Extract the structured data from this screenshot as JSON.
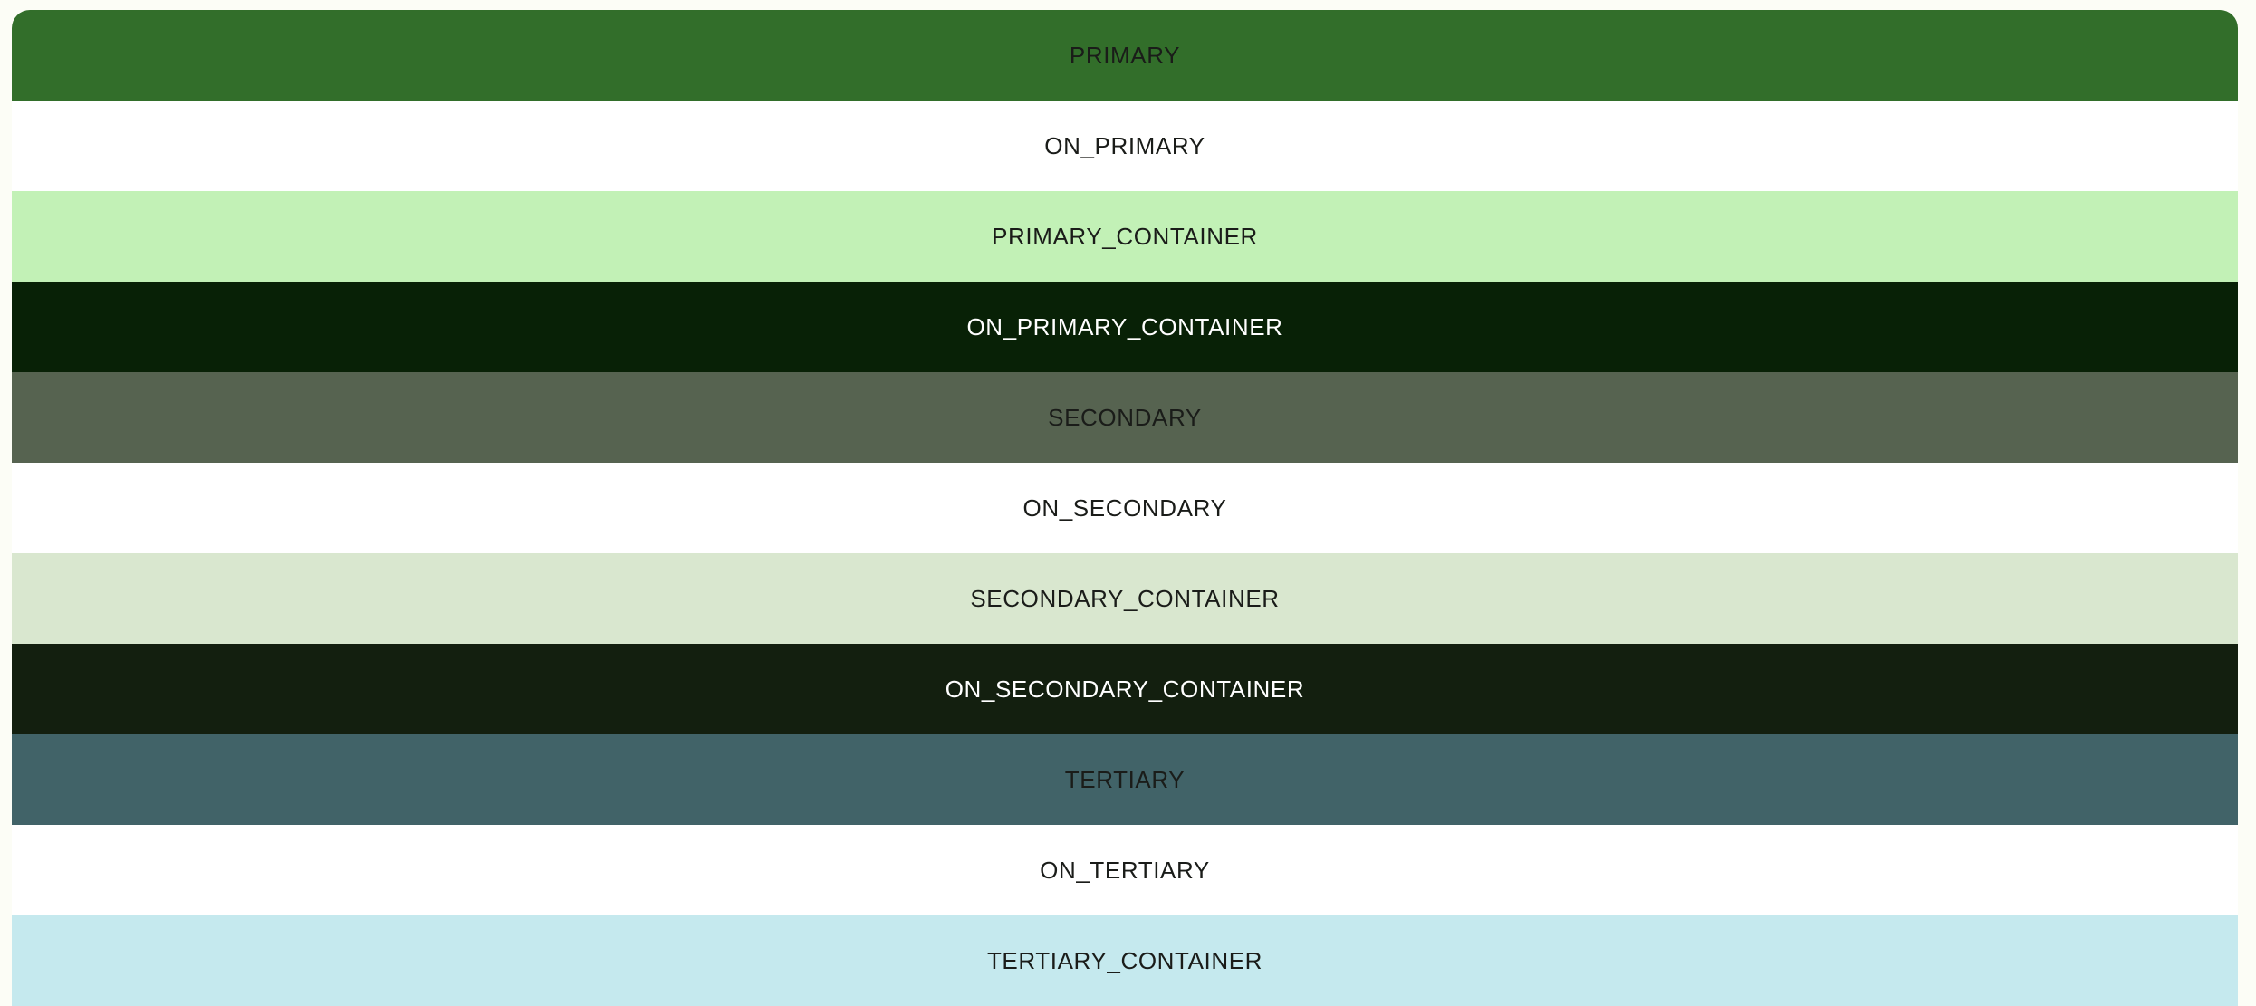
{
  "swatches": [
    {
      "label": "PRIMARY",
      "bg": "#326e2a",
      "fg": "#1a1c19"
    },
    {
      "label": "ON_PRIMARY",
      "bg": "#ffffff",
      "fg": "#1a1c19"
    },
    {
      "label": "PRIMARY_CONTAINER",
      "bg": "#c2f1b6",
      "fg": "#1a1c19"
    },
    {
      "label": "ON_PRIMARY_CONTAINER",
      "bg": "#082106",
      "fg": "#ffffff"
    },
    {
      "label": "SECONDARY",
      "bg": "#566350",
      "fg": "#1a1c19"
    },
    {
      "label": "ON_SECONDARY",
      "bg": "#ffffff",
      "fg": "#1a1c19"
    },
    {
      "label": "SECONDARY_CONTAINER",
      "bg": "#d9e7cf",
      "fg": "#1a1c19"
    },
    {
      "label": "ON_SECONDARY_CONTAINER",
      "bg": "#131f0f",
      "fg": "#ffffff"
    },
    {
      "label": "TERTIARY",
      "bg": "#416368",
      "fg": "#1a1c19"
    },
    {
      "label": "ON_TERTIARY",
      "bg": "#ffffff",
      "fg": "#1a1c19"
    },
    {
      "label": "TERTIARY_CONTAINER",
      "bg": "#c5e9ee",
      "fg": "#1a1c19"
    }
  ]
}
